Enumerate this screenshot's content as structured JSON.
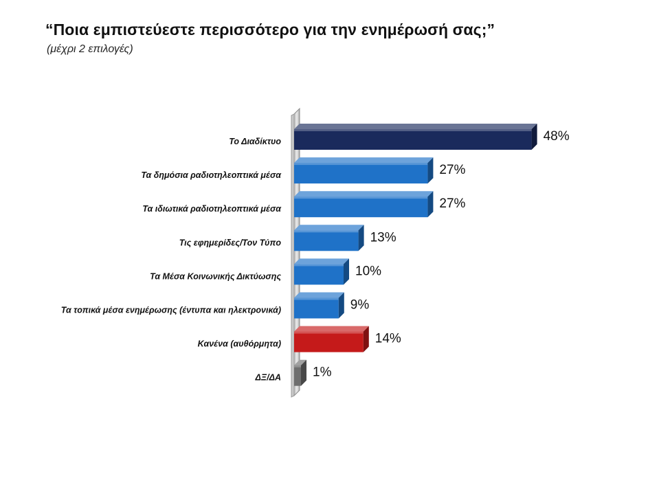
{
  "header": {
    "title": "“Ποια εμπιστεύεστε περισσότερο για την ενημέρωσή σας;”",
    "subtitle": "(μέχρι 2 επιλογές)"
  },
  "chart_data": {
    "type": "bar",
    "orientation": "horizontal",
    "categories": [
      "Το Διαδίκτυο",
      "Τα δημόσια ραδιοτηλεοπτικά μέσα",
      "Τα ιδιωτικά ραδιοτηλεοπτικά μέσα",
      "Τις εφημερίδες/Τον Τύπο",
      "Τα Μέσα Κοινωνικής Δικτύωσης",
      "Τα τοπικά μέσα ενημέρωσης (έντυπα και ηλεκτρονικά)",
      "Κανένα (αυθόρμητα)",
      "ΔΞ/ΔΑ"
    ],
    "values": [
      48,
      27,
      27,
      13,
      10,
      9,
      14,
      1
    ],
    "value_labels": [
      "48%",
      "27%",
      "27%",
      "13%",
      "10%",
      "9%",
      "14%",
      "1%"
    ],
    "bar_colors": [
      "#1a2a5c",
      "#1f72c8",
      "#1f72c8",
      "#1f72c8",
      "#1f72c8",
      "#1f72c8",
      "#c51a1a",
      "#6e6e6e"
    ],
    "xlim": [
      0,
      50
    ],
    "grid": false,
    "legend": "none",
    "unit": "%"
  }
}
